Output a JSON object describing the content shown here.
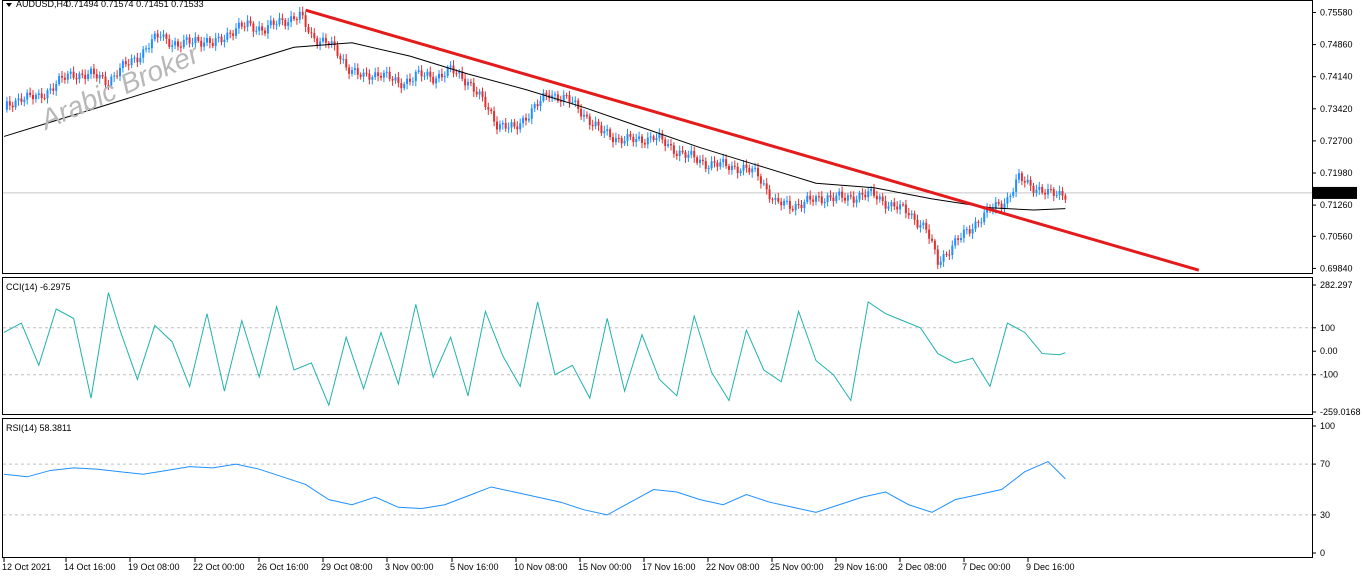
{
  "watermark": "Arabic Broker",
  "main_panel": {
    "symbol_label": "AUDUSD,H4",
    "ohlc_label": "0.71494 0.71574 0.71451 0.71533",
    "current_price": "0.71533"
  },
  "cci_panel": {
    "label": "CCI(14) -6.2975"
  },
  "rsi_panel": {
    "label": "RSI(14) 58.3811"
  },
  "colors": {
    "bull_candle": "#1e90ff",
    "bear_candle": "#e03030",
    "trendline": "#e31b1b",
    "moving_average": "#000000",
    "cci_line": "#20b2aa",
    "rsi_line": "#1e90ff",
    "price_tag_bg": "#000000",
    "price_tag_text": "#ffffff"
  },
  "chart_data": [
    {
      "type": "candlestick",
      "symbol": "AUDUSD",
      "timeframe": "H4",
      "y_ticks": [
        "0.75580",
        "0.74860",
        "0.74140",
        "0.73420",
        "0.72700",
        "0.71980",
        "0.71260",
        "0.70560",
        "0.69840"
      ],
      "ylim": [
        0.6976,
        0.7568
      ],
      "x_ticks": [
        "12 Oct 2021",
        "14 Oct 16:00",
        "19 Oct 08:00",
        "22 Oct 00:00",
        "26 Oct 16:00",
        "29 Oct 08:00",
        "3 Nov 00:00",
        "5 Nov 16:00",
        "10 Nov 08:00",
        "15 Nov 00:00",
        "17 Nov 16:00",
        "22 Nov 08:00",
        "25 Nov 00:00",
        "29 Nov 16:00",
        "2 Dec 08:00",
        "7 Dec 00:00",
        "9 Dec 16:00"
      ],
      "close_path": [
        [
          0,
          0.734
        ],
        [
          6,
          0.737
        ],
        [
          12,
          0.7365
        ],
        [
          18,
          0.74
        ],
        [
          24,
          0.742
        ],
        [
          30,
          0.7418
        ],
        [
          36,
          0.7405
        ],
        [
          42,
          0.744
        ],
        [
          48,
          0.747
        ],
        [
          54,
          0.751
        ],
        [
          60,
          0.748
        ],
        [
          66,
          0.75
        ],
        [
          72,
          0.7485
        ],
        [
          78,
          0.7515
        ],
        [
          84,
          0.753
        ],
        [
          90,
          0.752
        ],
        [
          96,
          0.754
        ],
        [
          102,
          0.755
        ],
        [
          106,
          0.7505
        ],
        [
          112,
          0.749
        ],
        [
          118,
          0.744
        ],
        [
          124,
          0.741
        ],
        [
          130,
          0.7425
        ],
        [
          136,
          0.7395
        ],
        [
          142,
          0.7418
        ],
        [
          148,
          0.7412
        ],
        [
          154,
          0.7428
        ],
        [
          160,
          0.7405
        ],
        [
          166,
          0.735
        ],
        [
          170,
          0.731
        ],
        [
          176,
          0.7295
        ],
        [
          182,
          0.734
        ],
        [
          188,
          0.7375
        ],
        [
          194,
          0.7365
        ],
        [
          200,
          0.733
        ],
        [
          206,
          0.729
        ],
        [
          212,
          0.7275
        ],
        [
          218,
          0.727
        ],
        [
          224,
          0.728
        ],
        [
          230,
          0.7255
        ],
        [
          236,
          0.7235
        ],
        [
          242,
          0.722
        ],
        [
          248,
          0.7215
        ],
        [
          254,
          0.721
        ],
        [
          260,
          0.7195
        ],
        [
          266,
          0.713
        ],
        [
          272,
          0.7125
        ],
        [
          278,
          0.7135
        ],
        [
          284,
          0.7145
        ],
        [
          290,
          0.714
        ],
        [
          296,
          0.715
        ],
        [
          300,
          0.7148
        ],
        [
          306,
          0.7125
        ],
        [
          312,
          0.711
        ],
        [
          318,
          0.707
        ],
        [
          322,
          0.7
        ],
        [
          328,
          0.704
        ],
        [
          334,
          0.708
        ],
        [
          340,
          0.7115
        ],
        [
          346,
          0.714
        ],
        [
          350,
          0.7185
        ],
        [
          356,
          0.7165
        ],
        [
          360,
          0.715
        ],
        [
          366,
          0.7153
        ]
      ],
      "moving_average_path": [
        [
          0,
          0.728
        ],
        [
          20,
          0.732
        ],
        [
          40,
          0.736
        ],
        [
          60,
          0.74
        ],
        [
          80,
          0.744
        ],
        [
          100,
          0.748
        ],
        [
          120,
          0.749
        ],
        [
          140,
          0.746
        ],
        [
          160,
          0.742
        ],
        [
          180,
          0.7385
        ],
        [
          200,
          0.7345
        ],
        [
          220,
          0.73
        ],
        [
          240,
          0.7255
        ],
        [
          260,
          0.7215
        ],
        [
          280,
          0.7175
        ],
        [
          300,
          0.7165
        ],
        [
          320,
          0.714
        ],
        [
          340,
          0.712
        ],
        [
          355,
          0.7115
        ],
        [
          366,
          0.7118
        ]
      ],
      "trendline": [
        [
          104,
          0.7563
        ],
        [
          412,
          0.698
        ]
      ],
      "current_price": 0.71533
    },
    {
      "type": "line",
      "indicator": "CCI(14)",
      "current_value": -6.2975,
      "y_ticks": [
        "282.297",
        "100",
        "0.00",
        "-100",
        "-259.0168"
      ],
      "ylim": [
        -259.0168,
        282.297
      ],
      "levels": [
        100,
        -100
      ],
      "x": [
        0,
        6,
        12,
        18,
        24,
        30,
        36,
        40,
        46,
        52,
        58,
        64,
        70,
        76,
        82,
        88,
        94,
        100,
        106,
        112,
        118,
        124,
        130,
        136,
        142,
        148,
        154,
        160,
        166,
        172,
        178,
        184,
        190,
        196,
        202,
        208,
        214,
        220,
        226,
        232,
        238,
        244,
        250,
        256,
        262,
        268,
        274,
        280,
        286,
        292,
        298,
        304,
        310,
        316,
        322,
        328,
        334,
        340,
        346,
        352,
        358,
        364,
        366
      ],
      "values": [
        80,
        120,
        -60,
        180,
        140,
        -200,
        250,
        90,
        -120,
        110,
        40,
        -150,
        160,
        -170,
        130,
        -110,
        190,
        -80,
        -50,
        -230,
        60,
        -160,
        80,
        -140,
        200,
        -110,
        60,
        -190,
        170,
        -20,
        -150,
        210,
        -100,
        -60,
        -200,
        140,
        -170,
        70,
        -120,
        -190,
        150,
        -90,
        -210,
        90,
        -80,
        -130,
        170,
        -40,
        -100,
        -210,
        210,
        160,
        130,
        100,
        -10,
        -50,
        -30,
        -150,
        120,
        80,
        -10,
        -15,
        -6.2975
      ]
    },
    {
      "type": "line",
      "indicator": "RSI(14)",
      "current_value": 58.3811,
      "y_ticks": [
        "100",
        "70",
        "30",
        "0"
      ],
      "ylim": [
        0,
        100
      ],
      "levels": [
        70,
        30
      ],
      "x": [
        0,
        8,
        16,
        24,
        32,
        40,
        48,
        56,
        64,
        72,
        80,
        88,
        96,
        104,
        112,
        120,
        128,
        136,
        144,
        152,
        160,
        168,
        176,
        184,
        192,
        200,
        208,
        216,
        224,
        232,
        240,
        248,
        256,
        264,
        272,
        280,
        288,
        296,
        304,
        312,
        320,
        328,
        336,
        344,
        352,
        360,
        366
      ],
      "values": [
        62,
        60,
        65,
        67,
        66,
        64,
        62,
        65,
        68,
        67,
        70,
        66,
        60,
        54,
        42,
        38,
        44,
        36,
        35,
        38,
        45,
        52,
        48,
        44,
        40,
        34,
        30,
        40,
        50,
        48,
        42,
        38,
        46,
        40,
        36,
        32,
        38,
        44,
        48,
        38,
        32,
        42,
        46,
        50,
        64,
        72,
        58.3811
      ]
    }
  ]
}
